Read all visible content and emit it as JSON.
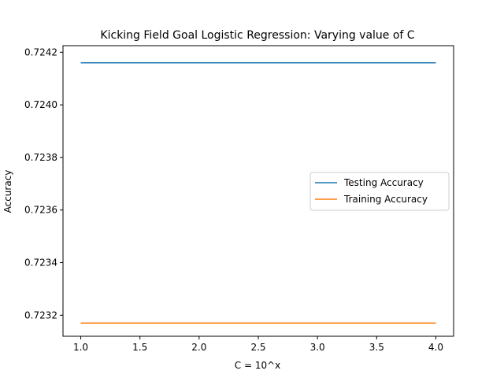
{
  "chart_data": {
    "type": "line",
    "title": "Kicking Field Goal Logistic Regression: Varying value of C",
    "xlabel": "C = 10^x",
    "ylabel": "Accuracy",
    "xlim": [
      0.85,
      4.15
    ],
    "ylim": [
      0.72312,
      0.724225
    ],
    "grid": false,
    "legend_position": "center-right",
    "x": [
      1.0,
      2.0,
      3.0,
      4.0
    ],
    "x_ticks": [
      1.0,
      1.5,
      2.0,
      2.5,
      3.0,
      3.5,
      4.0
    ],
    "x_tick_labels": [
      "1.0",
      "1.5",
      "2.0",
      "2.5",
      "3.0",
      "3.5",
      "4.0"
    ],
    "y_ticks": [
      0.7232,
      0.7234,
      0.7236,
      0.7238,
      0.724,
      0.7242
    ],
    "y_tick_labels": [
      "0.7232",
      "0.7234",
      "0.7236",
      "0.7238",
      "0.7240",
      "0.7242"
    ],
    "series": [
      {
        "name": "Testing Accuracy",
        "color": "#1f77b4",
        "values": [
          0.72416,
          0.72416,
          0.72416,
          0.72416
        ]
      },
      {
        "name": "Training Accuracy",
        "color": "#ff7f0e",
        "values": [
          0.72317,
          0.72317,
          0.72317,
          0.72317
        ]
      }
    ]
  }
}
